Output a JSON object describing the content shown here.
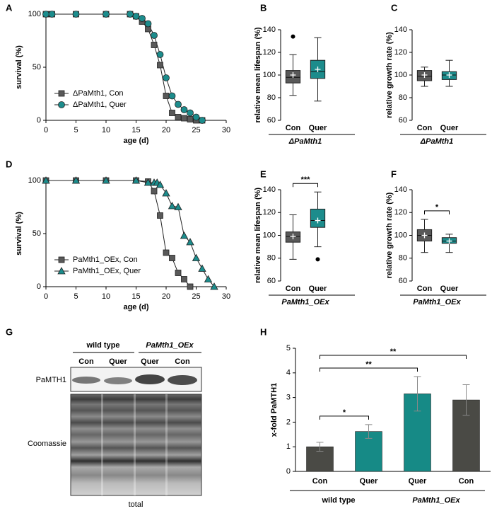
{
  "chart_data": [
    {
      "panel": "A",
      "type": "line",
      "xlabel": "age (d)",
      "ylabel": "survival (%)",
      "xlim": [
        0,
        30
      ],
      "xticks": [
        0,
        5,
        10,
        15,
        20,
        25,
        30
      ],
      "ylim": [
        0,
        100
      ],
      "yticks": [
        0,
        50,
        100
      ],
      "legend": "lower left",
      "series": [
        {
          "name": "ΔPaMth1, Con",
          "color": "#595959",
          "marker": "square",
          "x": [
            0,
            1,
            5,
            10,
            14,
            15,
            16,
            17,
            18,
            19,
            20,
            21,
            22,
            23,
            24,
            25,
            26
          ],
          "values": [
            100,
            100,
            100,
            100,
            100,
            98,
            93,
            86,
            71,
            52,
            23,
            7,
            3,
            2,
            1,
            0,
            0
          ]
        },
        {
          "name": "ΔPaMth1, Quer",
          "color": "#1c8c8c",
          "marker": "circle",
          "x": [
            0,
            1,
            5,
            10,
            14,
            15,
            16,
            17,
            18,
            19,
            20,
            21,
            22,
            23,
            24,
            25,
            26
          ],
          "values": [
            100,
            100,
            100,
            100,
            100,
            98,
            96,
            91,
            80,
            62,
            40,
            23,
            15,
            10,
            7,
            3,
            0
          ]
        }
      ]
    },
    {
      "panel": "B",
      "type": "box",
      "ylabel": "relative mean lifespan (%)",
      "ylim": [
        60,
        140
      ],
      "yticks": [
        60,
        80,
        100,
        120,
        140
      ],
      "categories": [
        "Con",
        "Quer"
      ],
      "group": "ΔPaMth1",
      "colors": [
        "#595959",
        "#1c8c8c"
      ],
      "boxes": [
        {
          "whisker_low": 82,
          "q1": 93,
          "median": 98,
          "q3": 104,
          "whisker_high": 118,
          "mean": 100,
          "outliers": [
            134
          ]
        },
        {
          "whisker_low": 77,
          "q1": 97,
          "median": 103,
          "q3": 113,
          "whisker_high": 133,
          "mean": 105,
          "outliers": []
        }
      ],
      "brackets": []
    },
    {
      "panel": "C",
      "type": "box",
      "ylabel": "relative growth rate (%)",
      "ylim": [
        60,
        140
      ],
      "yticks": [
        60,
        80,
        100,
        120,
        140
      ],
      "categories": [
        "Con",
        "Quer"
      ],
      "group": "ΔPaMth1",
      "colors": [
        "#595959",
        "#1c8c8c"
      ],
      "boxes": [
        {
          "whisker_low": 90,
          "q1": 95,
          "median": 99,
          "q3": 104,
          "whisker_high": 107,
          "mean": 100,
          "outliers": []
        },
        {
          "whisker_low": 90,
          "q1": 96,
          "median": 100,
          "q3": 103,
          "whisker_high": 113,
          "mean": 100,
          "outliers": []
        }
      ],
      "brackets": []
    },
    {
      "panel": "D",
      "type": "line",
      "xlabel": "age (d)",
      "ylabel": "survival (%)",
      "xlim": [
        0,
        30
      ],
      "xticks": [
        0,
        5,
        10,
        15,
        20,
        25,
        30
      ],
      "ylim": [
        0,
        100
      ],
      "yticks": [
        0,
        50,
        100
      ],
      "legend": "lower left",
      "series": [
        {
          "name": "PaMth1_OEx, Con",
          "color": "#595959",
          "marker": "square",
          "x": [
            0,
            5,
            10,
            15,
            17,
            18,
            19,
            20,
            21,
            22,
            23,
            24
          ],
          "values": [
            100,
            100,
            100,
            100,
            99,
            90,
            67,
            32,
            27,
            13,
            7,
            0
          ]
        },
        {
          "name": "PaMth1_OEx, Quer",
          "color": "#1c8c8c",
          "marker": "triangle",
          "x": [
            0,
            5,
            10,
            15,
            17,
            18,
            18.5,
            19,
            20,
            21,
            22,
            23,
            24,
            25,
            26,
            27,
            28
          ],
          "values": [
            100,
            100,
            100,
            100,
            98,
            98,
            98,
            96,
            88,
            76,
            75,
            48,
            42,
            27,
            17,
            7,
            0
          ]
        }
      ]
    },
    {
      "panel": "E",
      "type": "box",
      "ylabel": "relative mean lifespan (%)",
      "ylim": [
        60,
        140
      ],
      "yticks": [
        60,
        80,
        100,
        120,
        140
      ],
      "categories": [
        "Con",
        "Quer"
      ],
      "group": "PaMth1_OEx",
      "colors": [
        "#595959",
        "#1c8c8c"
      ],
      "boxes": [
        {
          "whisker_low": 79,
          "q1": 94,
          "median": 99,
          "q3": 103,
          "whisker_high": 118,
          "mean": 99,
          "outliers": []
        },
        {
          "whisker_low": 90,
          "q1": 107,
          "median": 113,
          "q3": 123,
          "whisker_high": 138,
          "mean": 113,
          "outliers": [
            79
          ]
        }
      ],
      "brackets": [
        {
          "label": "***",
          "pair": [
            0,
            1
          ]
        }
      ]
    },
    {
      "panel": "F",
      "type": "box",
      "ylabel": "relative growth rate (%)",
      "ylim": [
        60,
        140
      ],
      "yticks": [
        60,
        80,
        100,
        120,
        140
      ],
      "categories": [
        "Con",
        "Quer"
      ],
      "group": "PaMth1_OEx",
      "colors": [
        "#595959",
        "#1c8c8c"
      ],
      "boxes": [
        {
          "whisker_low": 85,
          "q1": 95,
          "median": 100,
          "q3": 105,
          "whisker_high": 114,
          "mean": 100,
          "outliers": []
        },
        {
          "whisker_low": 85,
          "q1": 93,
          "median": 95,
          "q3": 98,
          "whisker_high": 101,
          "mean": 95,
          "outliers": []
        }
      ],
      "brackets": [
        {
          "label": "*",
          "pair": [
            0,
            1
          ]
        }
      ]
    },
    {
      "panel": "H",
      "type": "bar",
      "ylabel": "x-fold PaMTH1",
      "ylim": [
        0,
        5
      ],
      "yticks": [
        0,
        1,
        2,
        3,
        4,
        5
      ],
      "categories": [
        "Con",
        "Quer",
        "Quer",
        "Con"
      ],
      "colors": [
        "#4a4a45",
        "#168a86",
        "#168a86",
        "#4a4a45"
      ],
      "values": [
        1.0,
        1.62,
        3.15,
        2.9
      ],
      "errors": [
        0.18,
        0.28,
        0.7,
        0.62
      ],
      "groups": [
        {
          "label": "wild type",
          "span": [
            0,
            1
          ]
        },
        {
          "label": "PaMth1_OEx",
          "span": [
            2,
            3
          ],
          "italic": true
        }
      ],
      "brackets": [
        {
          "label": "**",
          "pair": [
            0,
            3
          ]
        },
        {
          "label": "**",
          "pair": [
            0,
            2
          ]
        },
        {
          "label": "*",
          "pair": [
            0,
            1
          ]
        }
      ]
    }
  ],
  "blot": {
    "panel": "G",
    "groups": [
      "wild type",
      "PaMth1_OEx"
    ],
    "lanes": [
      "Con",
      "Quer",
      "Quer",
      "Con"
    ],
    "rows": [
      "PaMTH1",
      "Coomassie"
    ],
    "caption": "total"
  }
}
